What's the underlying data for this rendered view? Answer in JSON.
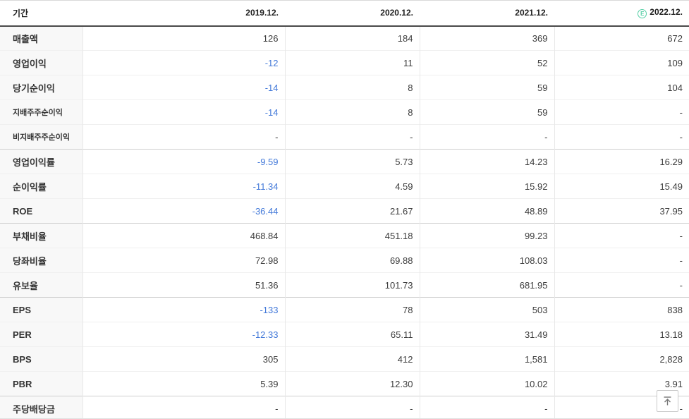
{
  "table": {
    "header": {
      "period_label": "기간",
      "columns": [
        "2019.12.",
        "2020.12.",
        "2021.12.",
        "2022.12."
      ],
      "estimate_badge": "E",
      "estimate_column_index": 3
    },
    "rows": [
      {
        "label": "매출액",
        "sub": false,
        "group_start": false,
        "values": [
          "126",
          "184",
          "369",
          "672"
        ]
      },
      {
        "label": "영업이익",
        "sub": false,
        "group_start": false,
        "values": [
          "-12",
          "11",
          "52",
          "109"
        ]
      },
      {
        "label": "당기순이익",
        "sub": false,
        "group_start": false,
        "values": [
          "-14",
          "8",
          "59",
          "104"
        ]
      },
      {
        "label": "지배주주순이익",
        "sub": true,
        "group_start": false,
        "values": [
          "-14",
          "8",
          "59",
          "-"
        ]
      },
      {
        "label": "비지배주주순이익",
        "sub": true,
        "group_start": false,
        "values": [
          "-",
          "-",
          "-",
          "-"
        ]
      },
      {
        "label": "영업이익률",
        "sub": false,
        "group_start": true,
        "values": [
          "-9.59",
          "5.73",
          "14.23",
          "16.29"
        ]
      },
      {
        "label": "순이익률",
        "sub": false,
        "group_start": false,
        "values": [
          "-11.34",
          "4.59",
          "15.92",
          "15.49"
        ]
      },
      {
        "label": "ROE",
        "sub": false,
        "group_start": false,
        "values": [
          "-36.44",
          "21.67",
          "48.89",
          "37.95"
        ]
      },
      {
        "label": "부채비율",
        "sub": false,
        "group_start": true,
        "values": [
          "468.84",
          "451.18",
          "99.23",
          "-"
        ]
      },
      {
        "label": "당좌비율",
        "sub": false,
        "group_start": false,
        "values": [
          "72.98",
          "69.88",
          "108.03",
          "-"
        ]
      },
      {
        "label": "유보율",
        "sub": false,
        "group_start": false,
        "values": [
          "51.36",
          "101.73",
          "681.95",
          "-"
        ]
      },
      {
        "label": "EPS",
        "sub": false,
        "group_start": true,
        "values": [
          "-133",
          "78",
          "503",
          "838"
        ]
      },
      {
        "label": "PER",
        "sub": false,
        "group_start": false,
        "values": [
          "-12.33",
          "65.11",
          "31.49",
          "13.18"
        ]
      },
      {
        "label": "BPS",
        "sub": false,
        "group_start": false,
        "values": [
          "305",
          "412",
          "1,581",
          "2,828"
        ]
      },
      {
        "label": "PBR",
        "sub": false,
        "group_start": false,
        "values": [
          "5.39",
          "12.30",
          "10.02",
          "3.91"
        ]
      },
      {
        "label": "주당배당금",
        "sub": false,
        "group_start": true,
        "values": [
          "-",
          "-",
          "-",
          "-"
        ]
      }
    ]
  },
  "scroll_top_button": {
    "icon": "arrow-up-to-bar"
  },
  "colors": {
    "negative_value": "#4379d9",
    "estimate_badge": "#55cfa5",
    "header_border": "#4a4a4a",
    "label_column_bg": "#f8f8f8"
  }
}
